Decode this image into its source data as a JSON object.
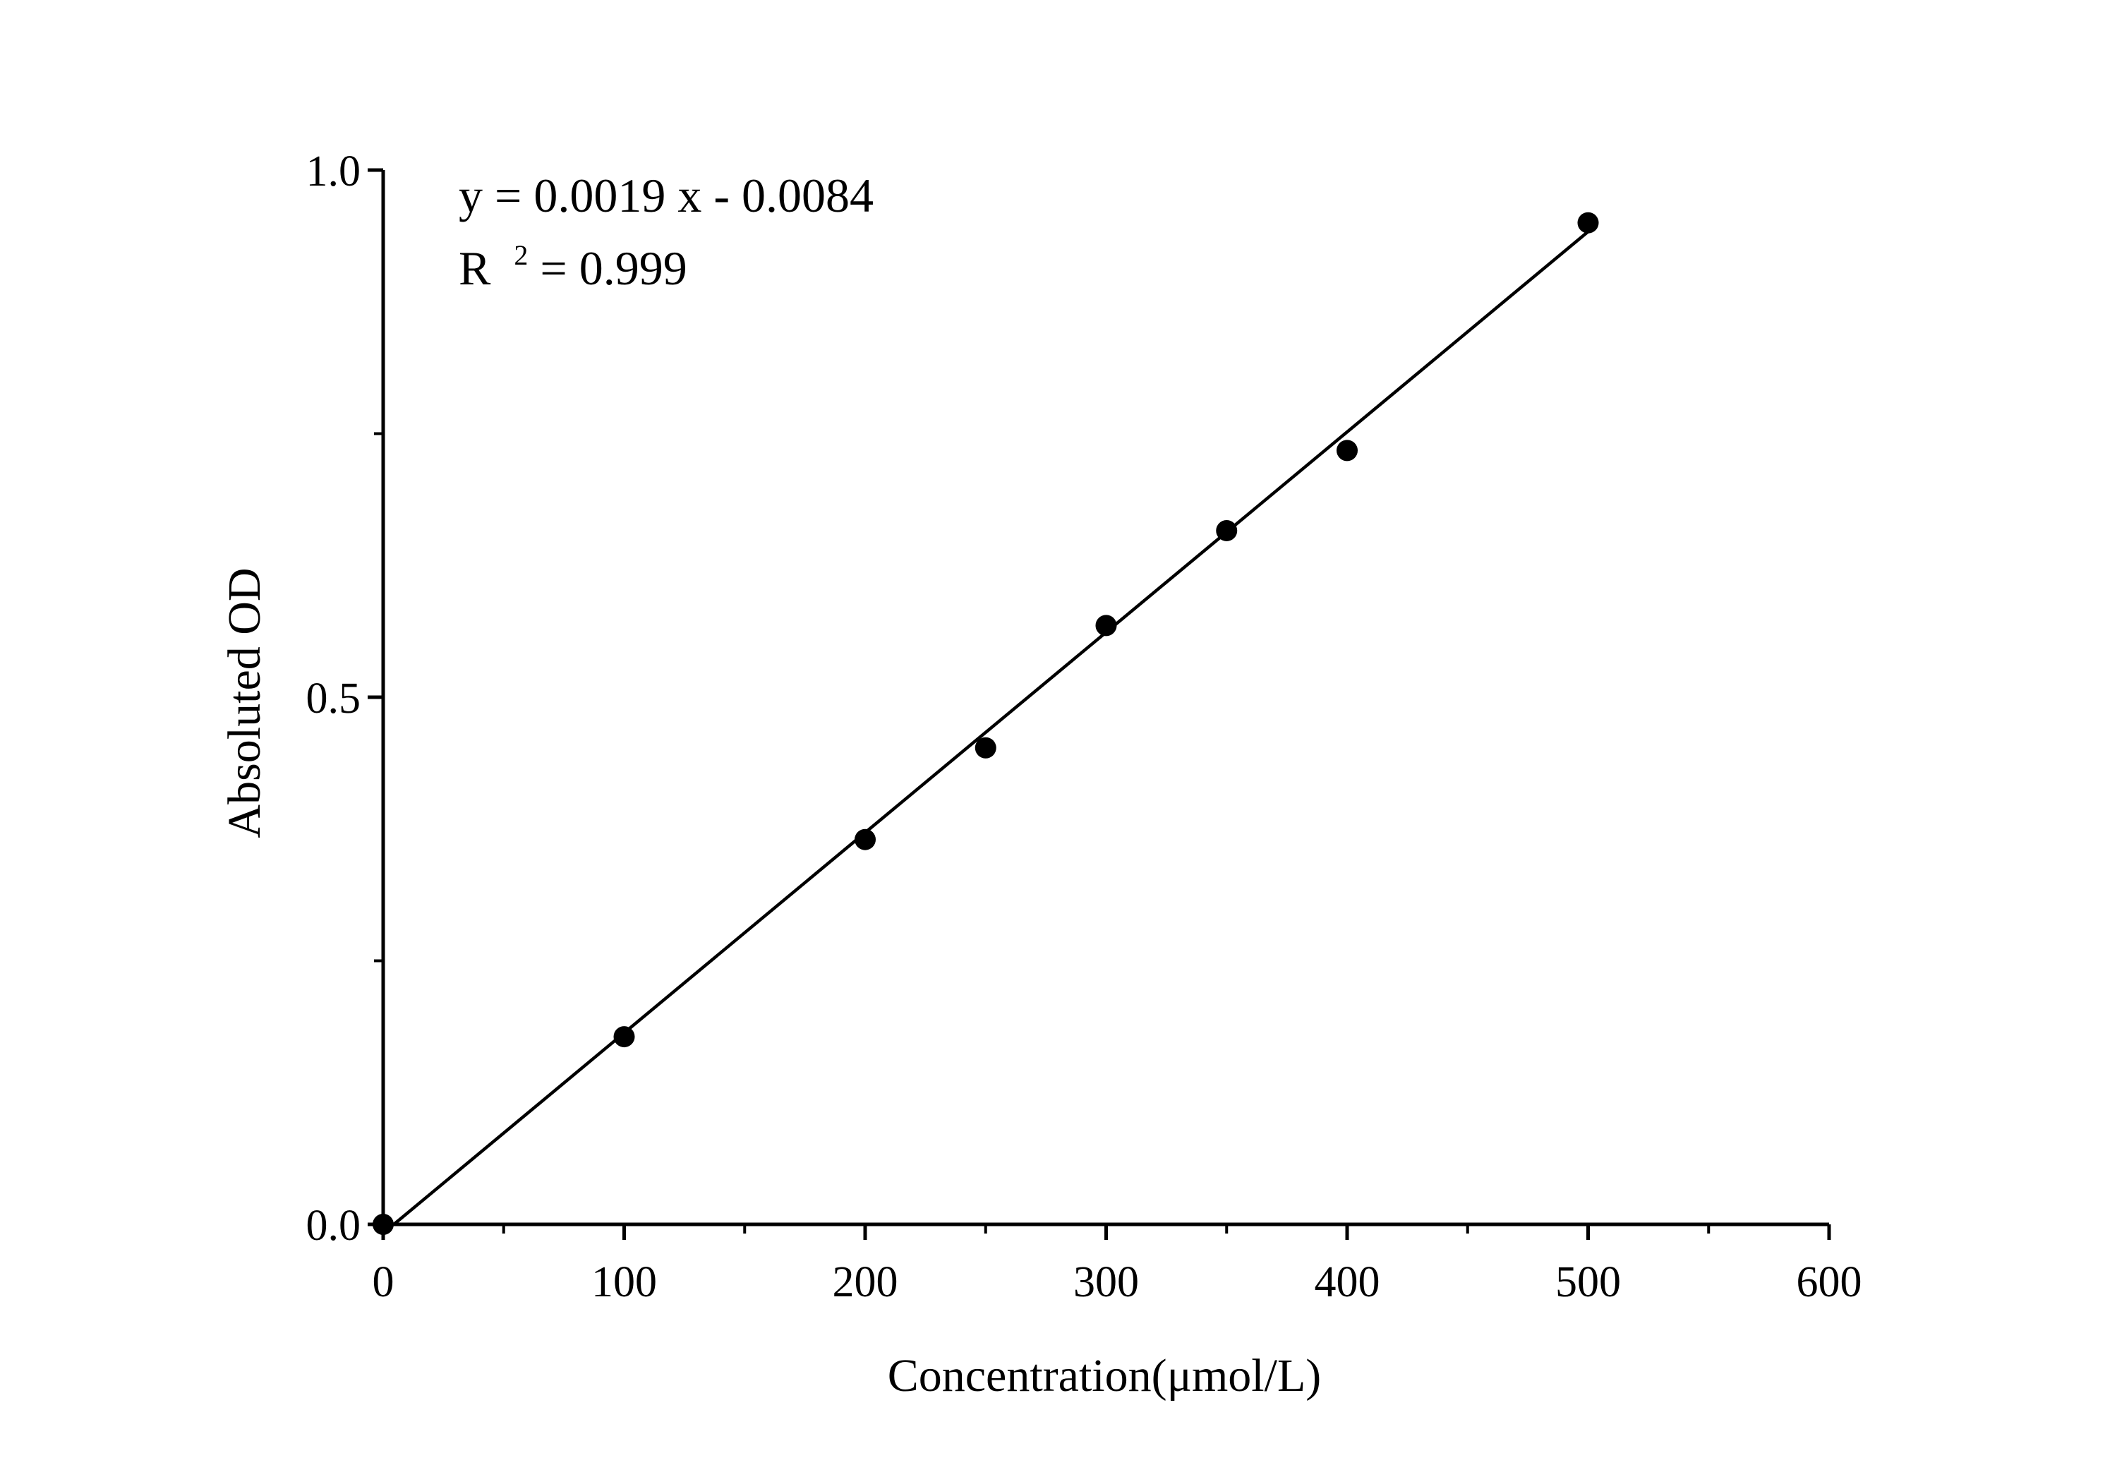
{
  "chart_data": {
    "type": "scatter",
    "xlabel": "Concentration(μmol/L)",
    "ylabel": "Absoluted OD",
    "xlim": [
      0,
      600
    ],
    "ylim": [
      0,
      1.0
    ],
    "x_ticks": [
      0,
      100,
      200,
      300,
      400,
      500,
      600
    ],
    "x_tick_labels": [
      "0",
      "100",
      "200",
      "300",
      "400",
      "500",
      "600"
    ],
    "x_minor_ticks": [
      50,
      150,
      250,
      350,
      450,
      550
    ],
    "y_ticks": [
      0,
      0.5,
      1.0
    ],
    "y_tick_labels": [
      "0.0",
      "0.5",
      "1.0"
    ],
    "y_minor_ticks": [
      0.25,
      0.75
    ],
    "grid": false,
    "legend": "none",
    "series": [
      {
        "x": [
          0,
          100,
          200,
          250,
          300,
          350,
          400,
          500
        ],
        "y": [
          0.0,
          0.178,
          0.365,
          0.452,
          0.568,
          0.658,
          0.734,
          0.95
        ],
        "marker": "filled-circle",
        "color": "#000000"
      }
    ],
    "fit_line": {
      "slope": 0.0019,
      "intercept": -0.0084,
      "x_range": [
        0,
        500
      ],
      "color": "#000000"
    },
    "annotations": {
      "equation": "y = 0.0019 x - 0.0084",
      "r2_prefix": "R",
      "r2_sup": "2",
      "r2_value": "= 0.999"
    }
  }
}
